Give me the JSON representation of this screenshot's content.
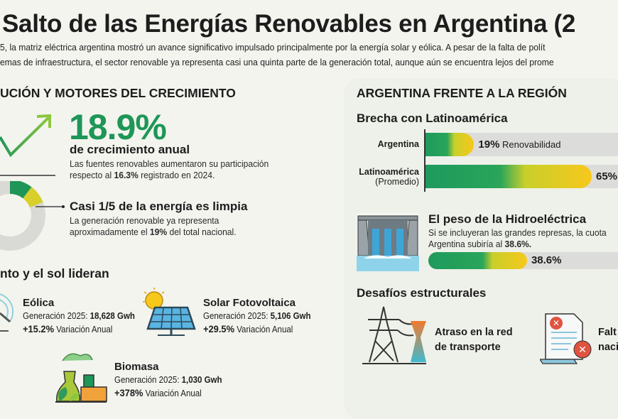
{
  "header": {
    "title": "Salto de las Energías Renovables en Argentina (2",
    "lines": [
      "5, la matriz eléctrica argentina mostró un avance significativo impulsado principalmente por la energía solar y eólica. A pesar de la falta de polít",
      "emas de infraestructura, el sector renovable ya representa casi una quinta parte de la generación total, aunque aún se encuentra lejos del prome"
    ]
  },
  "growth": {
    "heading": "UCIÓN Y MOTORES DEL CRECIMIENTO",
    "value": "18.9%",
    "value_label": "de crecimiento anual",
    "desc_1": "Las fuentes renovables aumentaron su participación",
    "desc_2a": "respecto al ",
    "desc_2b": "16.3%",
    "desc_2c": " registrado en 2024.",
    "share_title": "Casi 1/5 de la energía es limpia",
    "share_desc_1": "La generación renovable ya representa",
    "share_desc_2a": "aproximadamente el ",
    "share_desc_2b": "19%",
    "share_desc_2c": " del total nacional.",
    "share_fraction": 0.19
  },
  "sources": {
    "heading": "nto y el sol lideran",
    "items": [
      {
        "name": "Eólica",
        "gen_label": "Generación 2025: ",
        "gen_value": "18,628 Gwh",
        "var_value": "+15.2%",
        "var_label": " Variación Anual",
        "icon": "wind-turbine-icon"
      },
      {
        "name": "Solar Fotovoltaica",
        "gen_label": "Generación 2025: ",
        "gen_value": "5,106 Gwh",
        "var_value": "+29.5%",
        "var_label": " Variación Anual",
        "icon": "solar-panel-icon"
      },
      {
        "name": "Biomasa",
        "gen_label": "Generación 2025: ",
        "gen_value": "1,030 Gwh",
        "var_value": "+378%",
        "var_label": " Variación Anual",
        "icon": "biomass-plant-icon"
      }
    ]
  },
  "region": {
    "heading": "ARGENTINA FRENTE A LA REGIÓN",
    "gap_title": "Brecha con Latinoamérica",
    "bars": [
      {
        "label": "Argentina",
        "label2": "",
        "value": 19,
        "value_text": "19%",
        "suffix": " Renovabilidad"
      },
      {
        "label": "Latinoamérica",
        "label2": "(Promedio)",
        "value": 65,
        "value_text": "65%",
        "suffix": ""
      }
    ],
    "hydro_title": "El peso de la Hidroeléctrica",
    "hydro_desc_1": "Si se incluyeran las grandes represas, la cuota",
    "hydro_desc_2a": "Argentina subiría al ",
    "hydro_desc_2b": "38.6%.",
    "hydro_value": 38.6,
    "hydro_value_text": "38.6%",
    "challenges_title": "Desafíos estructurales",
    "challenges": [
      {
        "line1": "Atraso en la red",
        "line2": "de transporte",
        "icon": "transmission-tower-icon"
      },
      {
        "line1": "Falt",
        "line2": "naci",
        "icon": "rejected-document-icon"
      }
    ]
  },
  "colors": {
    "green": "#1e9657",
    "yellow": "#f7c81c",
    "gray": "#dcdcda"
  }
}
